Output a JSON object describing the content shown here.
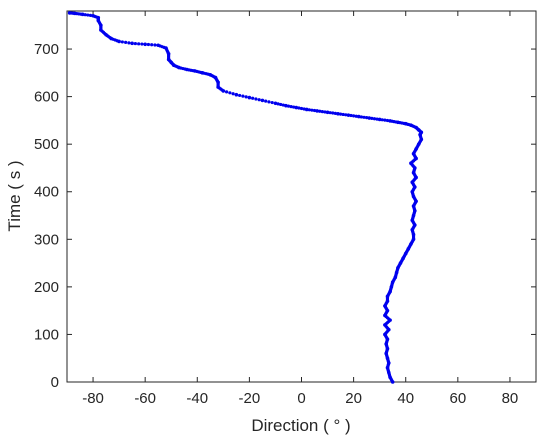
{
  "chart_data": {
    "type": "scatter",
    "title": "",
    "xlabel": "Direction ( ° )",
    "ylabel": "Time ( s )",
    "xlim": [
      -90,
      90
    ],
    "ylim": [
      0,
      780
    ],
    "xticks": [
      -80,
      -60,
      -40,
      -20,
      0,
      20,
      40,
      60,
      80
    ],
    "yticks": [
      0,
      100,
      200,
      300,
      400,
      500,
      600,
      700
    ],
    "grid": false,
    "legend": "none",
    "marker_color": "#0000ee",
    "series": [
      {
        "x": [
          35,
          34,
          33.5,
          33,
          33.5,
          33,
          32.5,
          33,
          32.5,
          33,
          32,
          33.5,
          32,
          34,
          32,
          33,
          32,
          33,
          33,
          34,
          34.5,
          35,
          36,
          36.5,
          37,
          38,
          39,
          40,
          41,
          42,
          43,
          43,
          42.5,
          43.5,
          42.5,
          43,
          43.5,
          43,
          44,
          43,
          42.5,
          43.5,
          42.5,
          44,
          43,
          43.5,
          42,
          44,
          43,
          44,
          45,
          46,
          45.5,
          46,
          45,
          44,
          42,
          40,
          37,
          34,
          30,
          26,
          22,
          18,
          14,
          10,
          6,
          2,
          -2,
          -6,
          -10,
          -15,
          -20,
          -25,
          -30,
          -32,
          -32,
          -33,
          -35,
          -38,
          -41,
          -44,
          -47,
          -49,
          -50,
          -51,
          -51,
          -52,
          -55,
          -60,
          -65,
          -70,
          -73,
          -75,
          -77,
          -77,
          -78,
          -78,
          -80,
          -84,
          -87,
          -89
        ],
        "y": [
          0,
          10,
          20,
          30,
          40,
          50,
          60,
          70,
          80,
          90,
          100,
          110,
          120,
          130,
          140,
          150,
          160,
          170,
          180,
          190,
          200,
          210,
          220,
          230,
          240,
          250,
          260,
          270,
          280,
          290,
          300,
          310,
          320,
          330,
          340,
          350,
          360,
          370,
          380,
          390,
          400,
          410,
          420,
          430,
          440,
          450,
          460,
          470,
          480,
          490,
          500,
          510,
          520,
          525,
          530,
          535,
          540,
          543,
          546,
          549,
          552,
          555,
          558,
          561,
          564,
          567,
          570,
          573,
          577,
          581,
          586,
          592,
          598,
          604,
          612,
          620,
          630,
          640,
          646,
          650,
          654,
          657,
          661,
          666,
          672,
          678,
          690,
          702,
          708,
          710,
          712,
          716,
          722,
          730,
          740,
          750,
          760,
          766,
          770,
          773,
          775,
          776
        ]
      }
    ]
  }
}
